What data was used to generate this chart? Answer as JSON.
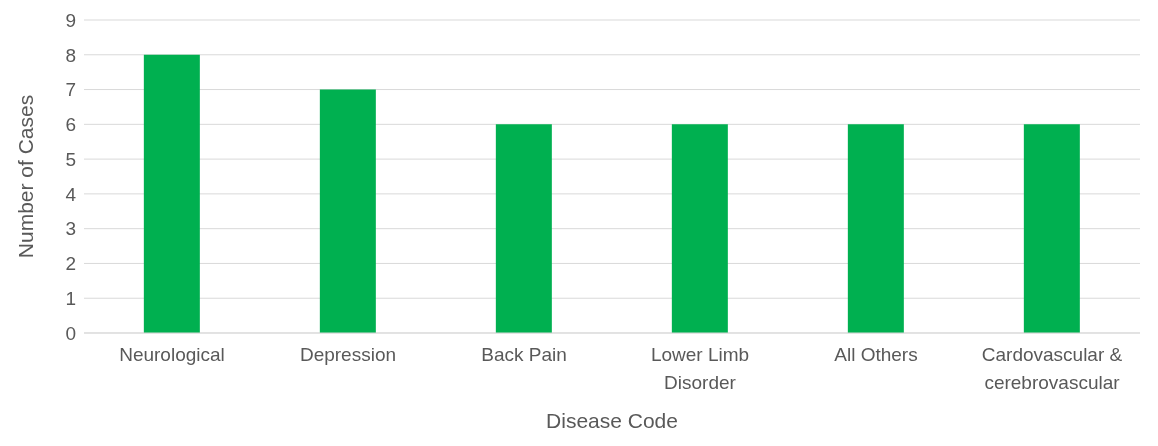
{
  "chart_data": {
    "type": "bar",
    "xlabel": "Disease Code",
    "ylabel": "Number of Cases",
    "categories": [
      "Neurological",
      "Depression",
      "Back Pain",
      "Lower Limb Disorder",
      "All Others",
      "Cardovascular & cerebrovascular"
    ],
    "values": [
      8,
      7,
      6,
      6,
      6,
      6
    ],
    "color": "#00b050",
    "ylim": [
      0,
      9
    ],
    "yticks": [
      0,
      1,
      2,
      3,
      4,
      5,
      6,
      7,
      8,
      9
    ],
    "grid": "y"
  }
}
